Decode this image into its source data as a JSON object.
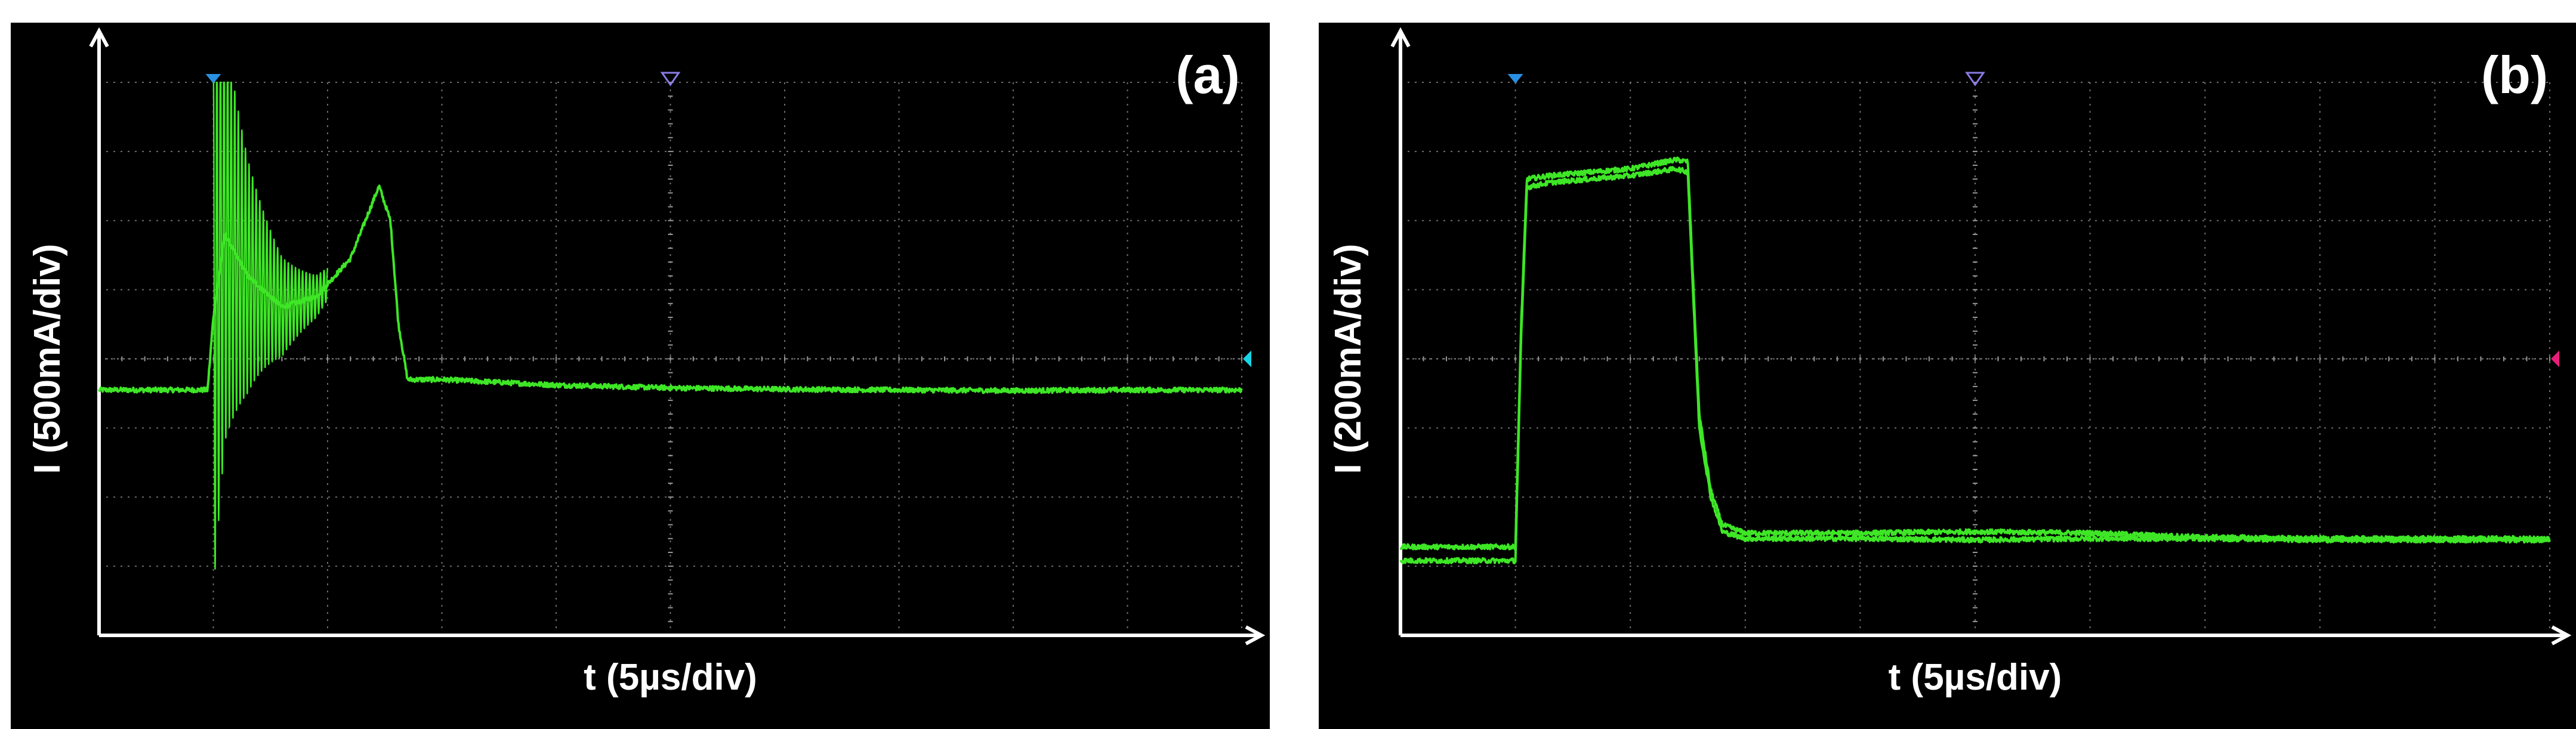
{
  "colors": {
    "background": "#000000",
    "axis": "#ffffff",
    "grid": "#6e6e6e",
    "trace": "#3ee626",
    "trigger_marker": "#2a8fe0",
    "position_marker": "#8a7ce6",
    "ground_marker_a": "#18d4e6",
    "ground_marker_b": "#e61e78"
  },
  "chart_data": [
    {
      "type": "line",
      "panel_label": "(a)",
      "xlabel": "t (5µs/div)",
      "ylabel": "I (500mA/div)",
      "x_units": "div",
      "y_units": "div",
      "xlim": [
        0,
        10
      ],
      "ylim": [
        -4,
        4
      ],
      "grid": true,
      "trigger_marker_x": 1,
      "position_marker_x": 5,
      "ground_marker_y": 0,
      "series": [
        {
          "x": [
            0,
            0.5,
            0.95,
            1.0,
            1.1,
            1.3,
            1.6,
            1.9,
            2.2,
            2.45,
            2.55,
            2.62,
            2.7,
            3.0,
            4.0,
            5.0,
            6.0,
            7.0,
            8.0,
            9.0,
            10.0
          ],
          "y": [
            -0.45,
            -0.45,
            -0.45,
            0.6,
            1.8,
            1.2,
            0.75,
            0.9,
            1.45,
            2.5,
            2.0,
            0.5,
            -0.3,
            -0.3,
            -0.38,
            -0.42,
            -0.44,
            -0.45,
            -0.46,
            -0.45,
            -0.45
          ],
          "ringing": {
            "start_x": 1.0,
            "end_x": 2.0,
            "peak_amplitude_div": 4.0,
            "decay_div": 0.35
          }
        }
      ]
    },
    {
      "type": "line",
      "panel_label": "(b)",
      "xlabel": "t (5µs/div)",
      "ylabel": "I (200mA/div)",
      "x_units": "div",
      "y_units": "div",
      "xlim": [
        0,
        10
      ],
      "ylim": [
        -4,
        4
      ],
      "grid": true,
      "trigger_marker_x": 1,
      "position_marker_x": 5,
      "ground_marker_y": 0,
      "series": [
        {
          "x": [
            0,
            0.5,
            1.0,
            1.05,
            1.1,
            1.3,
            2.0,
            2.4,
            2.5,
            2.55,
            2.6,
            2.7,
            2.8,
            3.0,
            4.0,
            5.0,
            6.0,
            7.0,
            8.0,
            9.0,
            10.0
          ],
          "y": [
            -2.72,
            -2.72,
            -2.72,
            0.5,
            2.6,
            2.65,
            2.75,
            2.88,
            2.85,
            1.0,
            -0.8,
            -1.9,
            -2.4,
            -2.52,
            -2.52,
            -2.5,
            -2.52,
            -2.58,
            -2.6,
            -2.6,
            -2.6
          ]
        },
        {
          "x": [
            0,
            0.5,
            1.0,
            1.05,
            1.1,
            1.3,
            2.0,
            2.4,
            2.5,
            2.55,
            2.6,
            2.7,
            2.8,
            3.0,
            4.0,
            5.0,
            6.0,
            7.0,
            8.0,
            9.0,
            10.0
          ],
          "y": [
            -2.92,
            -2.92,
            -2.92,
            0.3,
            2.48,
            2.55,
            2.65,
            2.75,
            2.7,
            0.8,
            -1.0,
            -2.0,
            -2.5,
            -2.6,
            -2.6,
            -2.62,
            -2.6,
            -2.6,
            -2.62,
            -2.62,
            -2.62
          ]
        }
      ]
    }
  ]
}
